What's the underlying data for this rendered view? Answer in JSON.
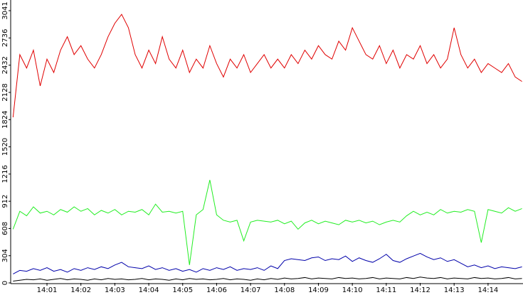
{
  "chart_data": {
    "type": "line",
    "x": [
      0,
      0.2,
      0.4,
      0.6,
      0.8,
      1,
      1.2,
      1.4,
      1.6,
      1.8,
      2,
      2.2,
      2.4,
      2.6,
      2.8,
      3,
      3.2,
      3.4,
      3.6,
      3.8,
      4,
      4.2,
      4.4,
      4.6,
      4.8,
      5,
      5.2,
      5.4,
      5.6,
      5.8,
      6,
      6.2,
      6.4,
      6.6,
      6.8,
      7,
      7.2,
      7.4,
      7.6,
      7.8,
      8,
      8.2,
      8.4,
      8.6,
      8.8,
      9,
      9.2,
      9.4,
      9.6,
      9.8,
      10,
      10.2,
      10.4,
      10.6,
      10.8,
      11,
      11.2,
      11.4,
      11.6,
      11.8,
      12,
      12.2,
      12.4,
      12.6,
      12.8,
      13,
      13.2,
      13.4,
      13.6,
      13.8,
      14,
      14.2,
      14.4,
      14.6,
      14.8,
      15
    ],
    "series": [
      {
        "color": "#e00000",
        "values": [
          1850,
          2550,
          2400,
          2600,
          2200,
          2500,
          2350,
          2600,
          2750,
          2550,
          2650,
          2500,
          2400,
          2550,
          2750,
          2900,
          3000,
          2850,
          2550,
          2400,
          2600,
          2450,
          2750,
          2500,
          2400,
          2600,
          2350,
          2500,
          2400,
          2650,
          2450,
          2300,
          2500,
          2400,
          2550,
          2350,
          2450,
          2550,
          2400,
          2500,
          2400,
          2550,
          2450,
          2600,
          2500,
          2650,
          2550,
          2500,
          2700,
          2600,
          2850,
          2700,
          2550,
          2500,
          2650,
          2450,
          2600,
          2400,
          2550,
          2500,
          2650,
          2450,
          2550,
          2400,
          2500,
          2850,
          2550,
          2400,
          2500,
          2350,
          2450,
          2400,
          2350,
          2450,
          2300,
          2250
        ]
      },
      {
        "color": "#22ee22",
        "values": [
          600,
          800,
          750,
          850,
          780,
          800,
          760,
          820,
          790,
          850,
          800,
          830,
          760,
          810,
          780,
          820,
          760,
          800,
          790,
          820,
          760,
          880,
          790,
          800,
          780,
          800,
          200,
          760,
          820,
          1150,
          760,
          700,
          680,
          700,
          470,
          680,
          700,
          690,
          680,
          700,
          660,
          690,
          600,
          670,
          700,
          660,
          690,
          670,
          650,
          700,
          680,
          700,
          670,
          690,
          650,
          680,
          700,
          680,
          750,
          800,
          760,
          790,
          760,
          820,
          780,
          800,
          790,
          820,
          800,
          450,
          820,
          800,
          780,
          840,
          800,
          830
        ]
      },
      {
        "color": "#0000aa",
        "values": [
          100,
          140,
          130,
          160,
          140,
          170,
          130,
          150,
          120,
          160,
          140,
          170,
          150,
          180,
          160,
          200,
          230,
          180,
          170,
          160,
          190,
          150,
          170,
          140,
          160,
          130,
          150,
          120,
          160,
          140,
          170,
          150,
          180,
          140,
          160,
          150,
          170,
          140,
          190,
          160,
          250,
          270,
          260,
          250,
          280,
          290,
          250,
          270,
          260,
          300,
          240,
          280,
          250,
          230,
          270,
          320,
          250,
          230,
          270,
          300,
          330,
          290,
          260,
          280,
          240,
          260,
          220,
          180,
          200,
          170,
          190,
          160,
          180,
          170,
          160,
          180
        ]
      },
      {
        "color": "#000000",
        "values": [
          20,
          30,
          40,
          35,
          45,
          30,
          40,
          50,
          35,
          45,
          40,
          30,
          45,
          35,
          50,
          40,
          45,
          35,
          40,
          50,
          35,
          45,
          40,
          30,
          45,
          35,
          50,
          40,
          45,
          35,
          40,
          50,
          35,
          45,
          40,
          30,
          45,
          35,
          50,
          40,
          55,
          45,
          50,
          60,
          45,
          55,
          50,
          45,
          60,
          50,
          55,
          45,
          50,
          60,
          45,
          55,
          50,
          45,
          60,
          50,
          65,
          55,
          50,
          60,
          45,
          55,
          50,
          45,
          60,
          50,
          55,
          45,
          50,
          60,
          45,
          50
        ]
      }
    ],
    "xlim": [
      -0.07,
      15.03
    ],
    "xticks": [
      {
        "value": 1,
        "label": "14:01"
      },
      {
        "value": 2,
        "label": "14:02"
      },
      {
        "value": 3,
        "label": "14:03"
      },
      {
        "value": 4,
        "label": "14:04"
      },
      {
        "value": 5,
        "label": "14:05"
      },
      {
        "value": 6,
        "label": "14:06"
      },
      {
        "value": 7,
        "label": "14:07"
      },
      {
        "value": 8,
        "label": "14:08"
      },
      {
        "value": 9,
        "label": "14:09"
      },
      {
        "value": 10,
        "label": "14:10"
      },
      {
        "value": 11,
        "label": "14:11"
      },
      {
        "value": 12,
        "label": "14:12"
      },
      {
        "value": 13,
        "label": "14:13"
      },
      {
        "value": 14,
        "label": "14:14"
      }
    ],
    "ylim": [
      0,
      3041
    ],
    "yticks": [
      0,
      304,
      608,
      912,
      1216,
      1520,
      1824,
      2128,
      2432,
      2736,
      3041
    ]
  }
}
